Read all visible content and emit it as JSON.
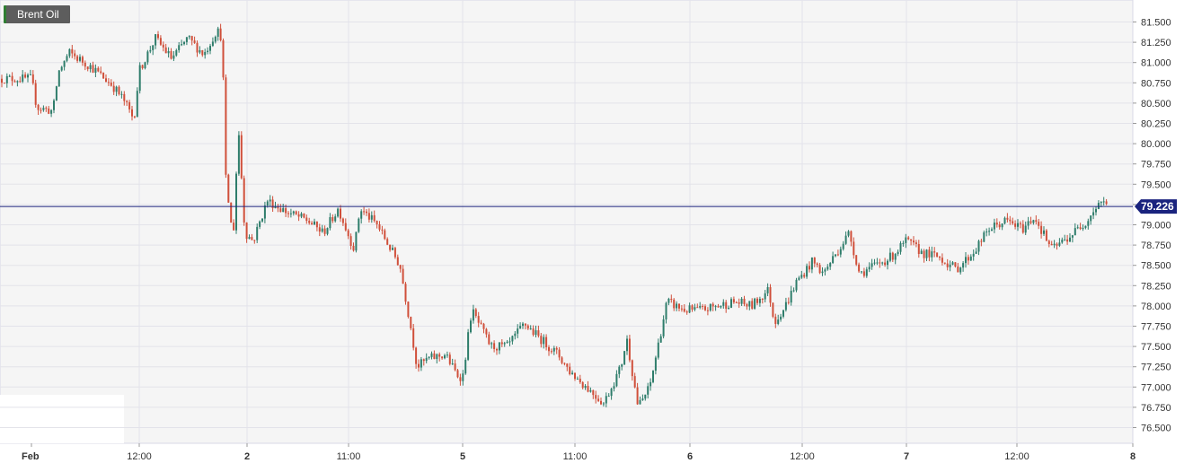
{
  "chart_data": {
    "type": "candlestick",
    "symbol": "Brent Oil",
    "last_price": "79.226",
    "y_ticks": [
      "81.500",
      "81.250",
      "81.000",
      "80.750",
      "80.500",
      "80.250",
      "80.000",
      "79.750",
      "79.500",
      "79.250",
      "79.000",
      "78.750",
      "78.500",
      "78.250",
      "78.000",
      "77.750",
      "77.500",
      "77.250",
      "77.000",
      "76.750",
      "76.500"
    ],
    "ylim": [
      76.375,
      81.625
    ],
    "x_ticks": [
      {
        "label": "Feb",
        "bold": true,
        "x": 0
      },
      {
        "label": "12:00",
        "bold": false,
        "x": 1
      },
      {
        "label": "2",
        "bold": true,
        "x": 2
      },
      {
        "label": "11:00",
        "bold": false,
        "x": 3
      },
      {
        "label": "5",
        "bold": true,
        "x": 4
      },
      {
        "label": "11:00",
        "bold": false,
        "x": 5
      },
      {
        "label": "6",
        "bold": true,
        "x": 6
      },
      {
        "label": "12:00",
        "bold": false,
        "x": 7
      },
      {
        "label": "7",
        "bold": true,
        "x": 8
      },
      {
        "label": "12:00",
        "bold": false,
        "x": 9
      },
      {
        "label": "8",
        "bold": true,
        "x": 10
      }
    ],
    "anchors": [
      [
        0.0,
        80.8
      ],
      [
        0.05,
        80.45
      ],
      [
        0.2,
        80.4
      ],
      [
        0.25,
        80.88
      ],
      [
        0.35,
        81.12
      ],
      [
        0.55,
        80.95
      ],
      [
        0.75,
        80.72
      ],
      [
        0.85,
        80.55
      ],
      [
        0.95,
        80.3
      ],
      [
        1.0,
        80.9
      ],
      [
        1.15,
        81.3
      ],
      [
        1.3,
        81.05
      ],
      [
        1.45,
        81.3
      ],
      [
        1.6,
        81.1
      ],
      [
        1.72,
        81.4
      ],
      [
        1.77,
        81.3
      ],
      [
        1.8,
        79.6
      ],
      [
        1.87,
        78.8
      ],
      [
        1.92,
        80.2
      ],
      [
        1.98,
        78.9
      ],
      [
        2.06,
        78.8
      ],
      [
        2.2,
        79.3
      ],
      [
        2.4,
        79.15
      ],
      [
        2.6,
        79.05
      ],
      [
        2.75,
        78.9
      ],
      [
        2.9,
        79.2
      ],
      [
        3.05,
        78.7
      ],
      [
        3.1,
        79.2
      ],
      [
        3.25,
        79.0
      ],
      [
        3.45,
        78.5
      ],
      [
        3.55,
        77.7
      ],
      [
        3.6,
        77.25
      ],
      [
        3.7,
        77.35
      ],
      [
        3.85,
        77.4
      ],
      [
        3.95,
        77.15
      ],
      [
        4.0,
        77.12
      ],
      [
        4.08,
        77.95
      ],
      [
        4.25,
        77.5
      ],
      [
        4.4,
        77.5
      ],
      [
        4.55,
        77.78
      ],
      [
        4.65,
        77.65
      ],
      [
        4.85,
        77.4
      ],
      [
        4.95,
        77.2
      ],
      [
        5.1,
        77.0
      ],
      [
        5.25,
        76.8
      ],
      [
        5.4,
        77.25
      ],
      [
        5.45,
        77.6
      ],
      [
        5.55,
        76.75
      ],
      [
        5.65,
        77.0
      ],
      [
        5.8,
        78.05
      ],
      [
        5.95,
        77.95
      ],
      [
        6.1,
        77.95
      ],
      [
        6.25,
        78.0
      ],
      [
        6.4,
        78.05
      ],
      [
        6.55,
        78.0
      ],
      [
        6.7,
        78.2
      ],
      [
        6.75,
        77.8
      ],
      [
        6.85,
        78.0
      ],
      [
        6.95,
        78.3
      ],
      [
        7.1,
        78.55
      ],
      [
        7.2,
        78.4
      ],
      [
        7.35,
        78.7
      ],
      [
        7.45,
        78.9
      ],
      [
        7.55,
        78.4
      ],
      [
        7.7,
        78.5
      ],
      [
        7.85,
        78.6
      ],
      [
        8.0,
        78.8
      ],
      [
        8.15,
        78.65
      ],
      [
        8.3,
        78.6
      ],
      [
        8.45,
        78.45
      ],
      [
        8.6,
        78.65
      ],
      [
        8.75,
        78.95
      ],
      [
        8.9,
        79.05
      ],
      [
        9.05,
        78.95
      ],
      [
        9.15,
        79.1
      ],
      [
        9.3,
        78.7
      ],
      [
        9.45,
        78.85
      ],
      [
        9.6,
        79.05
      ],
      [
        9.72,
        79.3
      ],
      [
        9.78,
        79.23
      ]
    ]
  }
}
